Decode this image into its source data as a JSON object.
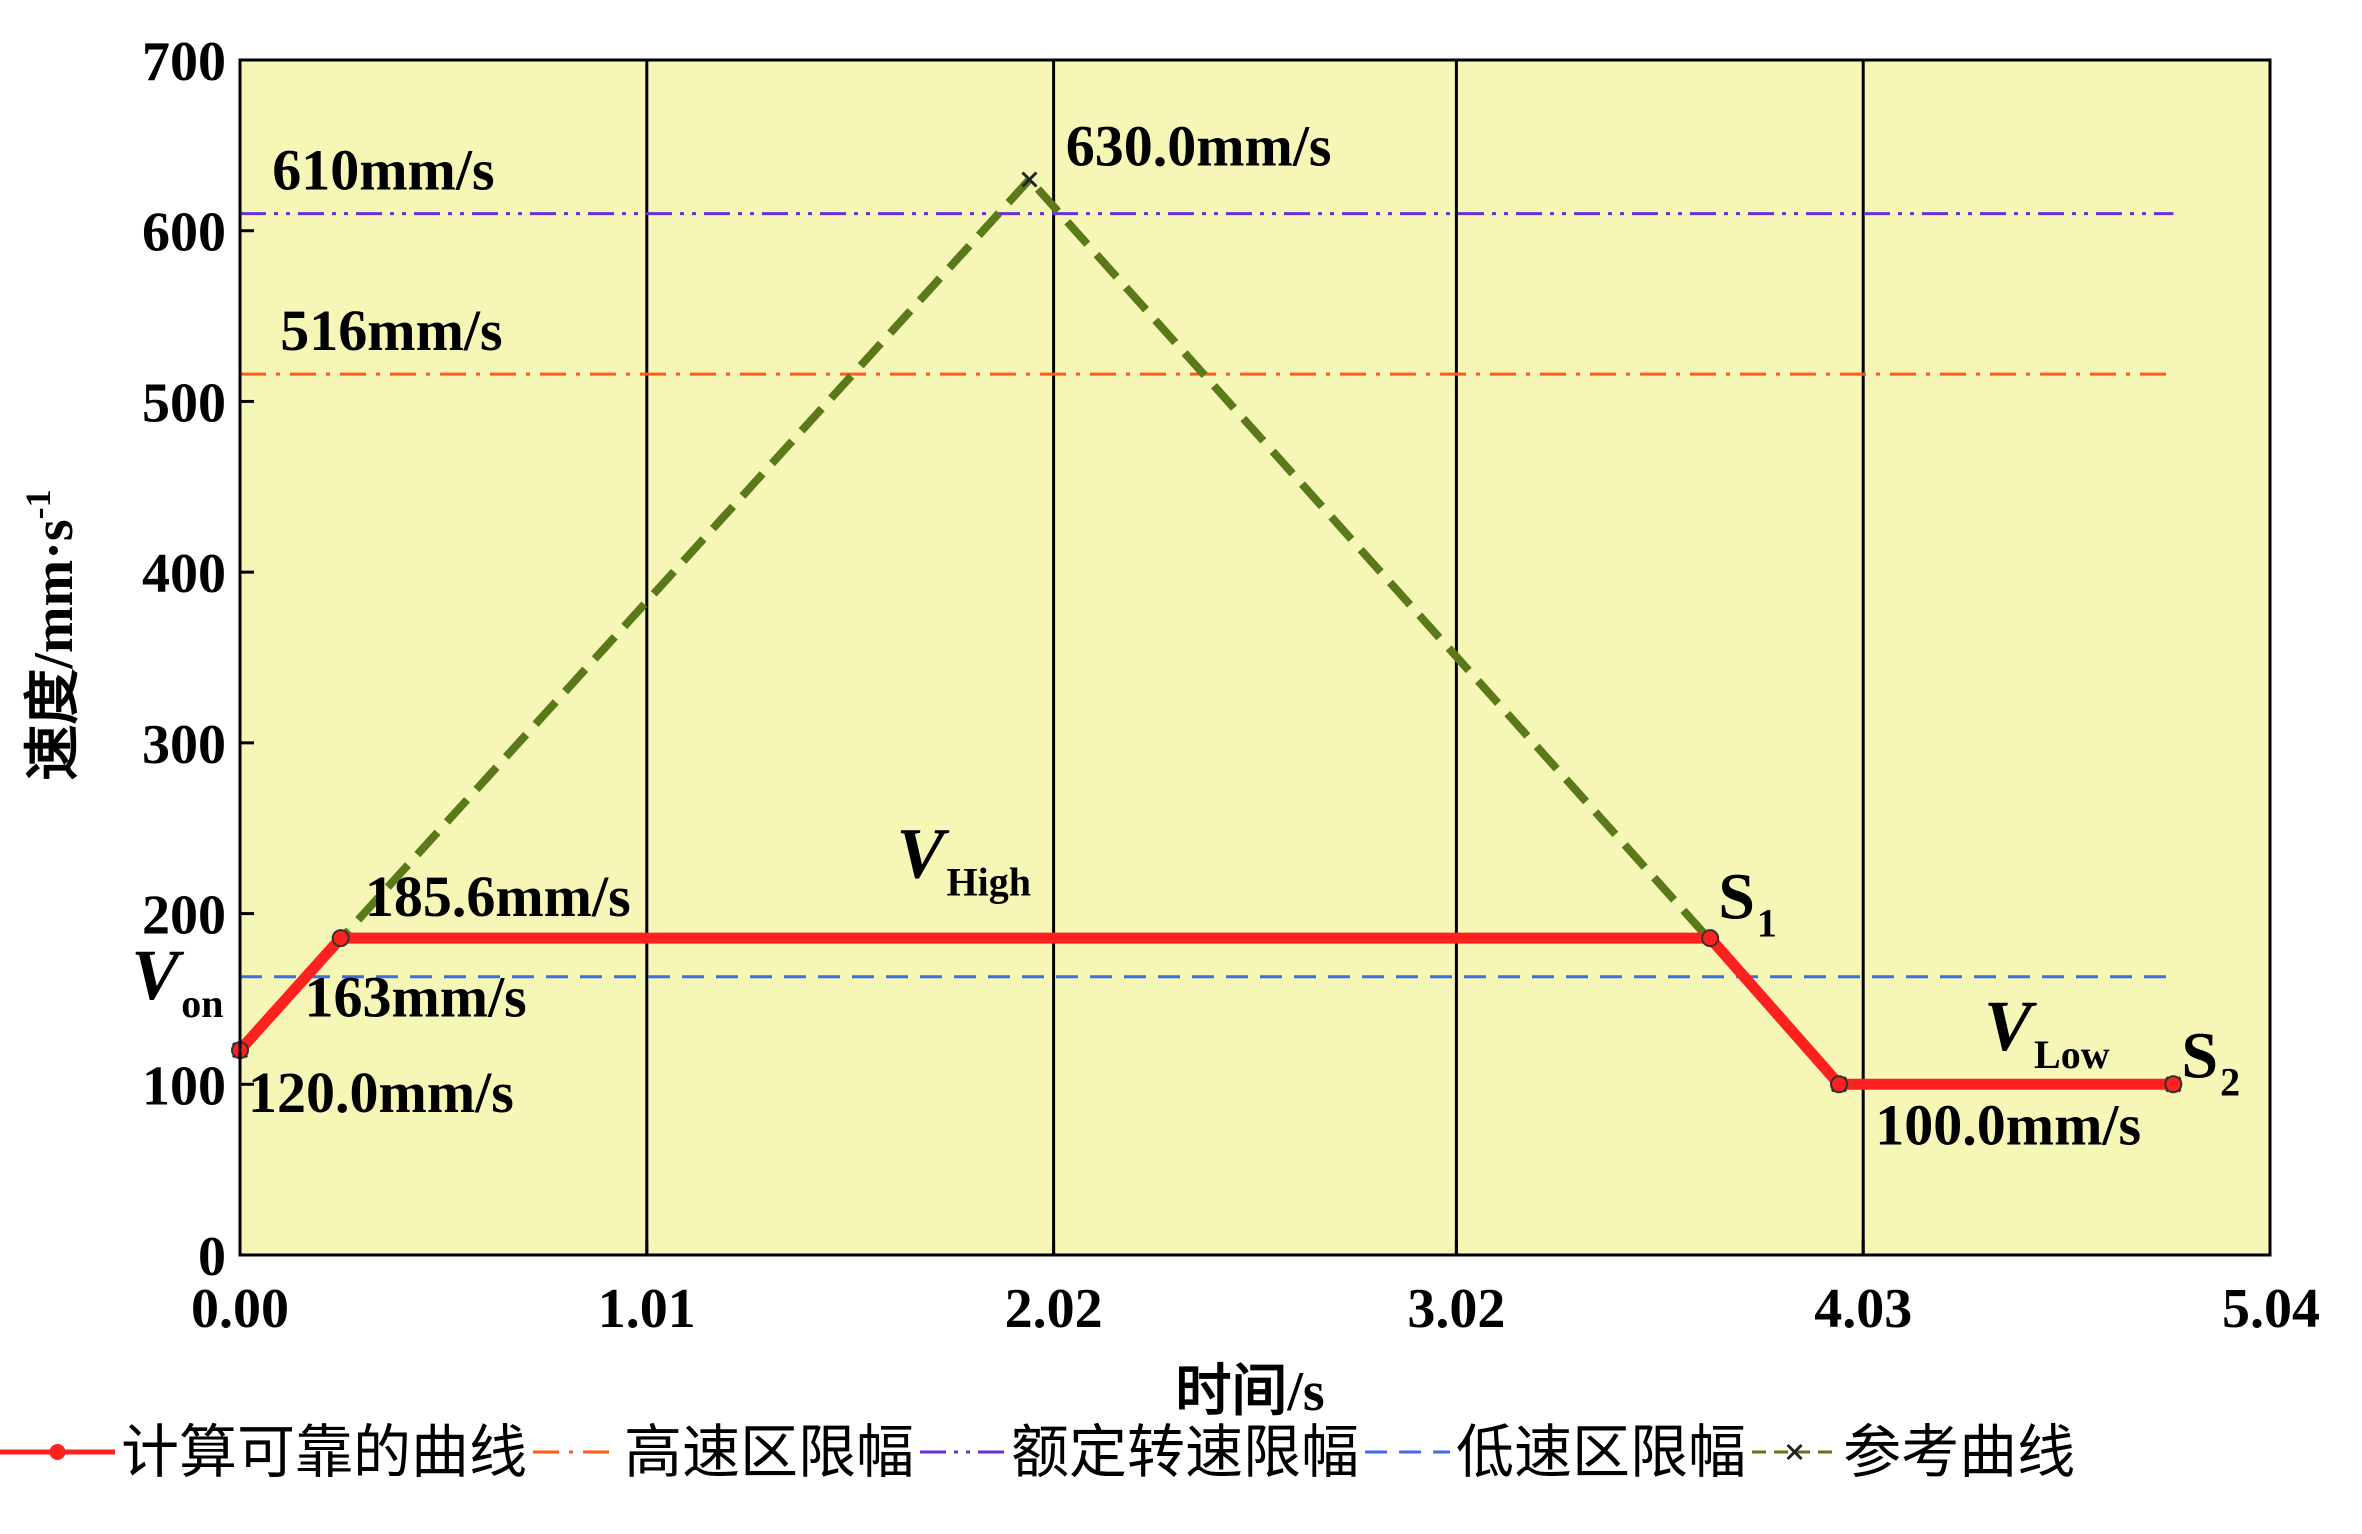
{
  "chart_data": {
    "type": "line",
    "xlabel": "时间/s",
    "ylabel": "速度/mm·s",
    "ylabel_sup": "-1",
    "xlim": [
      0,
      5.04
    ],
    "ylim": [
      0,
      700
    ],
    "xticks": [
      0,
      1.01,
      2.02,
      3.02,
      4.03,
      5.04
    ],
    "xtick_labels": [
      "0.00",
      "1.01",
      "2.02",
      "3.02",
      "4.03",
      "5.04"
    ],
    "yticks": [
      0,
      100,
      200,
      300,
      400,
      500,
      600,
      700
    ],
    "ytick_labels": [
      "0",
      "100",
      "200",
      "300",
      "400",
      "500",
      "600",
      "700"
    ],
    "grid": "vertical lines at x ticks",
    "background": "#f6f6b6",
    "legend_position": "bottom",
    "series": [
      {
        "name": "计算可靠的曲线",
        "color": "#ff2020",
        "style": "solid-marker",
        "x": [
          0.0,
          0.25,
          3.65,
          3.97,
          4.8
        ],
        "y": [
          120.0,
          185.6,
          185.6,
          100.0,
          100.0
        ]
      },
      {
        "name": "高速区限幅",
        "color": "#ff5a1e",
        "style": "dashdot",
        "x": [
          0.0,
          4.8
        ],
        "y": [
          516,
          516
        ]
      },
      {
        "name": "额定转速限幅",
        "color": "#6a2fd8",
        "style": "dashdotdot",
        "x": [
          0.0,
          4.8
        ],
        "y": [
          610,
          610
        ]
      },
      {
        "name": "低速区限幅",
        "color": "#3c6ee8",
        "style": "dashed",
        "x": [
          0.0,
          4.8
        ],
        "y": [
          163,
          163
        ]
      },
      {
        "name": "参考曲线",
        "color": "#5a7a1a",
        "style": "dashed-cross",
        "x": [
          0.0,
          1.96,
          3.97,
          4.8
        ],
        "y": [
          120.0,
          630.0,
          100.0,
          100.0
        ]
      }
    ],
    "annotations": [
      {
        "text": "610mm/s",
        "x": 0.08,
        "y": 610,
        "dy": -24
      },
      {
        "text": "516mm/s",
        "x": 0.1,
        "y": 516,
        "dy": -24
      },
      {
        "text": "630.0mm/s",
        "x": 2.05,
        "y": 630,
        "dy": -14
      },
      {
        "text": "185.6mm/s",
        "x": 0.31,
        "y": 185.6,
        "dy": -22
      },
      {
        "text": "163mm/s",
        "x": 0.16,
        "y": 163,
        "dy": 40
      },
      {
        "text": "120.0mm/s",
        "x": 0.02,
        "y": 120,
        "dy": 62
      },
      {
        "text": "100.0mm/s",
        "x": 4.06,
        "y": 100,
        "dy": 60
      }
    ],
    "symbols": [
      {
        "main": "V",
        "sub": "on",
        "italic": true,
        "x": -0.27,
        "y": 150
      },
      {
        "main": "V",
        "sub": "High",
        "italic": true,
        "x": 1.63,
        "y": 221
      },
      {
        "main": "S",
        "sub": "1",
        "italic": false,
        "x": 3.67,
        "y": 197
      },
      {
        "main": "V",
        "sub": "Low",
        "italic": true,
        "x": 4.33,
        "y": 120
      },
      {
        "main": "S",
        "sub": "2",
        "italic": false,
        "x": 4.82,
        "y": 104
      }
    ]
  }
}
